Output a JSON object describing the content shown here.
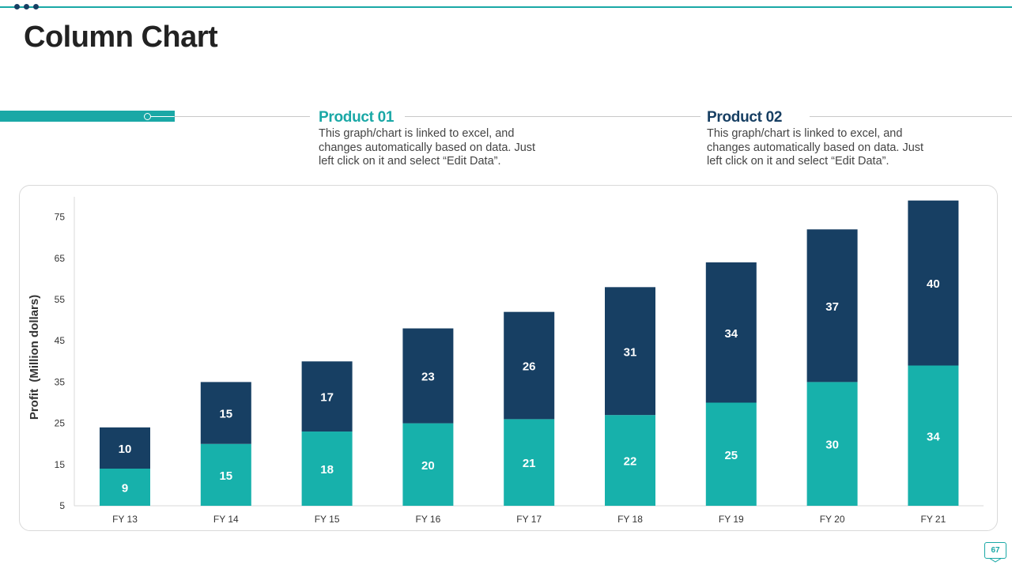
{
  "page": {
    "title": "Column Chart",
    "page_number": "67"
  },
  "legend": {
    "product1": {
      "title": "Product 01",
      "description": "This graph/chart is linked to excel, and changes automatically based on data. Just left click on it and select “Edit Data”."
    },
    "product2": {
      "title": "Product 02",
      "description": "This graph/chart is linked to excel, and changes automatically based on data. Just left click on it and select “Edit Data”."
    }
  },
  "colors": {
    "product1": "#17b1ab",
    "product2": "#173f63",
    "accent": "#1aa8a6"
  },
  "chart_data": {
    "type": "bar",
    "stacked": true,
    "title": "",
    "xlabel": "",
    "ylabel": "Profit  (Million dollars)",
    "categories": [
      "FY 13",
      "FY 14",
      "FY 15",
      "FY 16",
      "FY 17",
      "FY 18",
      "FY 19",
      "FY 20",
      "FY 21"
    ],
    "series": [
      {
        "name": "Product 01",
        "values": [
          9,
          15,
          18,
          20,
          21,
          22,
          25,
          30,
          34
        ]
      },
      {
        "name": "Product 02",
        "values": [
          10,
          15,
          17,
          23,
          26,
          31,
          34,
          37,
          40
        ]
      }
    ],
    "ylim": [
      5,
      80
    ],
    "yticks": [
      5,
      15,
      25,
      35,
      45,
      55,
      65,
      75
    ],
    "grid": false,
    "legend": "top"
  }
}
